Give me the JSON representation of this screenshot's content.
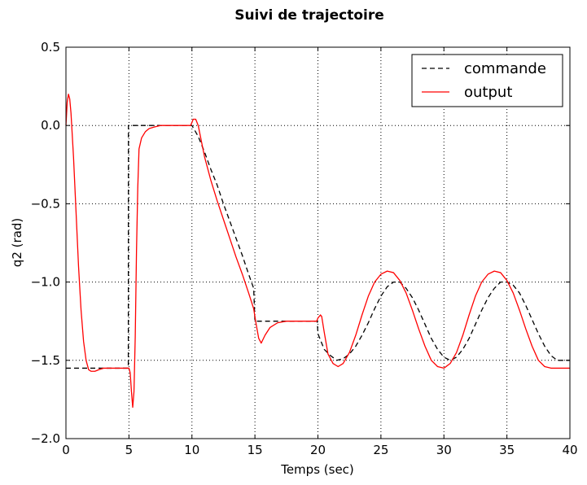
{
  "chart_data": {
    "type": "line",
    "title": "Suivi de trajectoire",
    "xlabel": "Temps (sec)",
    "ylabel": "q2 (rad)",
    "xlim": [
      0,
      40
    ],
    "ylim": [
      -2.0,
      0.5
    ],
    "x_ticks": [
      0,
      5,
      10,
      15,
      20,
      25,
      30,
      35,
      40
    ],
    "x_tick_labels": [
      "0",
      "5",
      "10",
      "15",
      "20",
      "25",
      "30",
      "35",
      "40"
    ],
    "y_ticks": [
      -2.0,
      -1.5,
      -1.0,
      -0.5,
      0.0,
      0.5
    ],
    "y_tick_labels": [
      "−2.0",
      "−1.5",
      "−1.0",
      "−0.5",
      "0.0",
      "0.5"
    ],
    "grid": true,
    "legend_position": "top-right",
    "series": [
      {
        "name": "commande",
        "color": "#000000",
        "style": "dashed",
        "x": [
          0,
          4.95,
          4.96,
          9.96,
          10.0,
          10.5,
          11.0,
          11.5,
          12.0,
          12.5,
          13.0,
          13.5,
          14.0,
          14.5,
          14.9,
          15.0,
          19.95,
          20.0,
          20.5,
          21.0,
          21.5,
          22.0,
          22.5,
          23.0,
          23.5,
          24.0,
          24.5,
          25.0,
          25.5,
          26.0,
          26.5,
          27.0,
          27.5,
          28.0,
          28.5,
          29.0,
          29.5,
          30.0,
          30.5,
          31.0,
          31.5,
          32.0,
          32.5,
          33.0,
          33.5,
          34.0,
          34.5,
          35.0,
          35.5,
          36.0,
          36.5,
          37.0,
          37.5,
          38.0,
          38.5,
          39.0,
          39.5,
          40.0
        ],
        "y": [
          -1.55,
          -1.55,
          0.0,
          0.0,
          0.0,
          -0.07,
          -0.17,
          -0.28,
          -0.38,
          -0.5,
          -0.61,
          -0.72,
          -0.83,
          -0.95,
          -1.04,
          -1.25,
          -1.25,
          -1.33,
          -1.43,
          -1.47,
          -1.5,
          -1.49,
          -1.46,
          -1.41,
          -1.34,
          -1.26,
          -1.17,
          -1.09,
          -1.03,
          -1.0,
          -1.0,
          -1.04,
          -1.1,
          -1.18,
          -1.27,
          -1.36,
          -1.43,
          -1.48,
          -1.5,
          -1.48,
          -1.43,
          -1.36,
          -1.27,
          -1.18,
          -1.1,
          -1.04,
          -1.0,
          -1.0,
          -1.02,
          -1.07,
          -1.15,
          -1.24,
          -1.33,
          -1.41,
          -1.47,
          -1.5,
          -1.5,
          -1.5
        ]
      },
      {
        "name": "output",
        "color": "#ff0000",
        "style": "solid",
        "x": [
          0,
          0.1,
          0.2,
          0.3,
          0.4,
          0.6,
          0.8,
          1.0,
          1.2,
          1.4,
          1.6,
          1.8,
          2.0,
          2.3,
          2.6,
          3.0,
          3.5,
          4.0,
          4.5,
          5.0,
          5.1,
          5.2,
          5.3,
          5.4,
          5.5,
          5.6,
          5.7,
          5.8,
          6.0,
          6.3,
          6.6,
          7.0,
          7.5,
          8.0,
          8.5,
          9.0,
          9.5,
          9.9,
          10.1,
          10.3,
          10.5,
          10.7,
          11.0,
          11.5,
          12.0,
          12.5,
          13.0,
          13.5,
          14.0,
          14.5,
          14.9,
          15.1,
          15.3,
          15.5,
          15.8,
          16.2,
          16.8,
          17.5,
          18.5,
          19.9,
          20.0,
          20.2,
          20.3,
          20.5,
          20.8,
          21.2,
          21.6,
          22.0,
          22.5,
          23.0,
          23.5,
          24.0,
          24.5,
          25.0,
          25.5,
          26.0,
          26.5,
          27.0,
          27.5,
          28.0,
          28.5,
          29.0,
          29.5,
          30.0,
          30.5,
          31.0,
          31.5,
          32.0,
          32.5,
          33.0,
          33.5,
          34.0,
          34.5,
          35.0,
          35.5,
          36.0,
          36.5,
          37.0,
          37.5,
          38.0,
          38.5,
          39.0,
          39.5,
          40.0
        ],
        "y": [
          0.0,
          0.15,
          0.2,
          0.17,
          0.08,
          -0.2,
          -0.55,
          -0.9,
          -1.18,
          -1.38,
          -1.5,
          -1.56,
          -1.57,
          -1.57,
          -1.56,
          -1.55,
          -1.55,
          -1.55,
          -1.55,
          -1.55,
          -1.58,
          -1.7,
          -1.8,
          -1.7,
          -1.35,
          -0.8,
          -0.4,
          -0.15,
          -0.08,
          -0.04,
          -0.02,
          -0.01,
          0.0,
          0.0,
          0.0,
          0.0,
          0.0,
          0.0,
          0.04,
          0.04,
          0.0,
          -0.08,
          -0.2,
          -0.35,
          -0.48,
          -0.6,
          -0.72,
          -0.84,
          -0.95,
          -1.07,
          -1.17,
          -1.27,
          -1.36,
          -1.39,
          -1.34,
          -1.29,
          -1.26,
          -1.25,
          -1.25,
          -1.25,
          -1.23,
          -1.21,
          -1.22,
          -1.32,
          -1.46,
          -1.52,
          -1.54,
          -1.52,
          -1.45,
          -1.34,
          -1.21,
          -1.09,
          -1.0,
          -0.95,
          -0.93,
          -0.94,
          -0.99,
          -1.07,
          -1.18,
          -1.3,
          -1.41,
          -1.5,
          -1.54,
          -1.55,
          -1.52,
          -1.45,
          -1.34,
          -1.21,
          -1.09,
          -1.0,
          -0.95,
          -0.93,
          -0.94,
          -0.99,
          -1.07,
          -1.18,
          -1.3,
          -1.41,
          -1.5,
          -1.54,
          -1.55,
          -1.55,
          -1.55,
          -1.55
        ]
      }
    ]
  }
}
